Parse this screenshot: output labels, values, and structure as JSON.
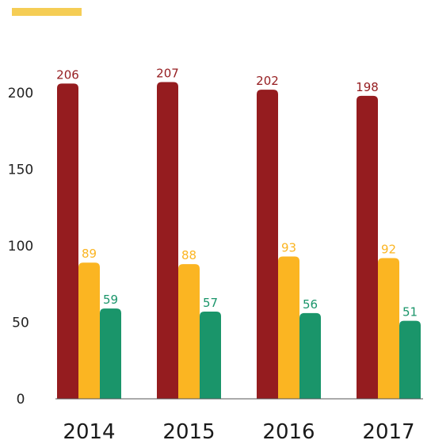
{
  "colors": {
    "accent_bar": "#f5cd55",
    "axis": "#555555"
  },
  "chart_data": {
    "type": "bar",
    "title": "",
    "xlabel": "",
    "ylabel": "",
    "categories": [
      "2014",
      "2015",
      "2016",
      "2017"
    ],
    "ylim": [
      0,
      200
    ],
    "yticks": [
      0,
      50,
      100,
      150,
      200
    ],
    "grid": false,
    "legend": "none",
    "series": [
      {
        "values": [
          206,
          207,
          202,
          198
        ],
        "color": "#951c1f"
      },
      {
        "values": [
          89,
          88,
          93,
          92
        ],
        "color": "#fbb522"
      },
      {
        "values": [
          59,
          57,
          56,
          51
        ],
        "color": "#1a956a"
      }
    ]
  }
}
